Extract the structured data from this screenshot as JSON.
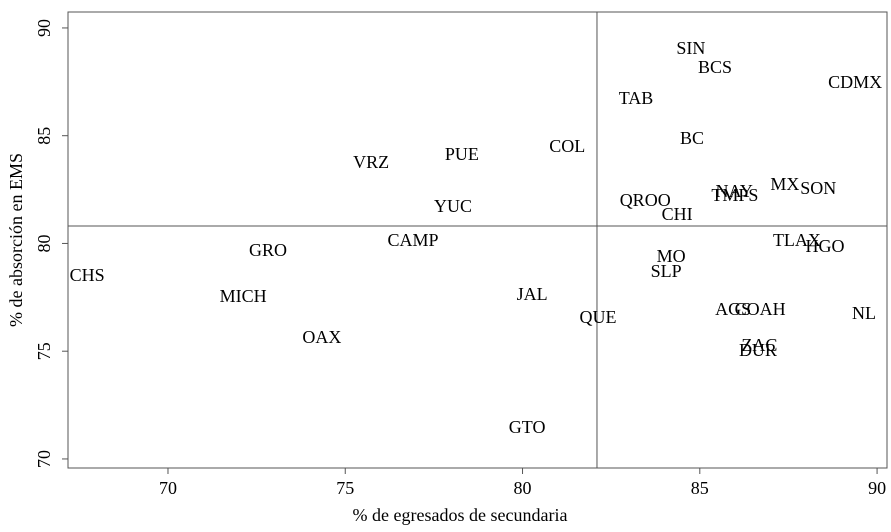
{
  "chart_data": {
    "type": "scatter",
    "x_label": "% de egresados de secundaria",
    "y_label": "% de absorción en EMS",
    "labels": [
      "CHS",
      "MICH",
      "GRO",
      "OAX",
      "VRZ",
      "PUE",
      "YUC",
      "CAMP",
      "COL",
      "JAL",
      "QUE",
      "GTO",
      "SIN",
      "BCS",
      "TAB",
      "CDMX",
      "BC",
      "QROO",
      "CHI",
      "NAY",
      "TMPS",
      "MX",
      "SON",
      "TLAX",
      "HGO",
      "MO",
      "SLP",
      "AGS",
      "COAH",
      "NL",
      "ZAC",
      "DUR"
    ],
    "x": [
      67.72,
      72.12,
      72.82,
      74.34,
      75.73,
      78.29,
      78.04,
      76.91,
      81.26,
      80.27,
      82.13,
      80.13,
      84.75,
      85.43,
      83.2,
      89.38,
      84.78,
      83.46,
      84.36,
      85.97,
      85.99,
      87.4,
      88.34,
      87.74,
      88.53,
      84.19,
      84.05,
      85.94,
      86.7,
      89.63,
      86.68,
      86.64
    ],
    "values": [
      78.45,
      77.47,
      79.61,
      75.57,
      83.69,
      84.06,
      81.65,
      80.07,
      84.43,
      77.56,
      76.5,
      71.39,
      88.98,
      88.1,
      86.66,
      87.4,
      84.8,
      81.93,
      81.28,
      82.34,
      82.16,
      82.67,
      82.48,
      80.07,
      79.79,
      79.33,
      78.63,
      76.87,
      76.87,
      76.68,
      75.2,
      74.97
    ],
    "reference_lines": {
      "x": 82.1,
      "y": 80.81
    },
    "xlim": [
      67.18,
      90.28
    ],
    "ylim": [
      69.58,
      90.74
    ],
    "xticks": [
      70,
      75,
      80,
      85,
      90
    ],
    "yticks": [
      70,
      75,
      80,
      85,
      90
    ],
    "color": "#000000"
  }
}
